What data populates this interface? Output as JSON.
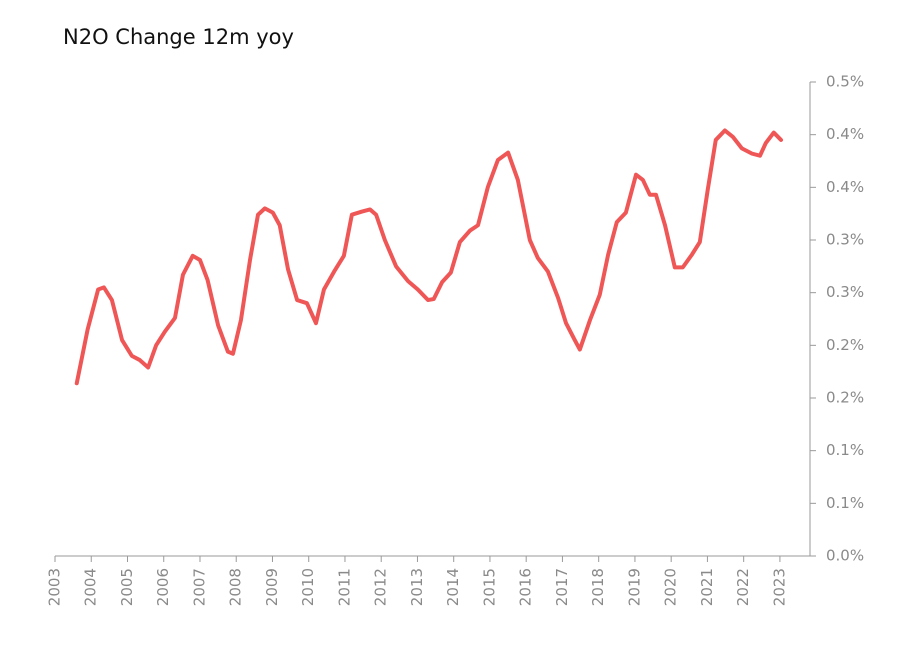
{
  "chart_data": {
    "type": "line",
    "title": "N2O Change 12m yoy",
    "xlim": [
      2003,
      2023.83
    ],
    "xticks": [
      2003,
      2004,
      2005,
      2006,
      2007,
      2008,
      2009,
      2010,
      2011,
      2012,
      2013,
      2014,
      2015,
      2016,
      2017,
      2018,
      2019,
      2020,
      2021,
      2022,
      2023
    ],
    "ylim": [
      0,
      0.45
    ],
    "yticks": [
      {
        "value": 0,
        "label": "0.0%"
      },
      {
        "value": 0.05,
        "label": "0.1%"
      },
      {
        "value": 0.1,
        "label": "0.1%"
      },
      {
        "value": 0.15,
        "label": "0.2%"
      },
      {
        "value": 0.2,
        "label": "0.2%"
      },
      {
        "value": 0.25,
        "label": "0.3%"
      },
      {
        "value": 0.3,
        "label": "0.3%"
      },
      {
        "value": 0.35,
        "label": "0.4%"
      },
      {
        "value": 0.4,
        "label": "0.4%"
      },
      {
        "value": 0.45,
        "label": "0.5%"
      }
    ],
    "grid": false,
    "series": [
      {
        "color": "#ef5757",
        "x": [
          2003.6,
          2003.9,
          2004.19,
          2004.35,
          2004.57,
          2004.85,
          2005.12,
          2005.34,
          2005.57,
          2005.79,
          2006.03,
          2006.31,
          2006.53,
          2006.8,
          2007.0,
          2007.21,
          2007.5,
          2007.77,
          2007.91,
          2008.13,
          2008.38,
          2008.6,
          2008.79,
          2009.01,
          2009.2,
          2009.43,
          2009.68,
          2009.95,
          2010.2,
          2010.42,
          2010.7,
          2010.97,
          2011.19,
          2011.47,
          2011.69,
          2011.86,
          2012.1,
          2012.41,
          2012.74,
          2013.01,
          2013.29,
          2013.45,
          2013.68,
          2013.92,
          2014.17,
          2014.45,
          2014.67,
          2014.94,
          2015.22,
          2015.5,
          2015.77,
          2016.1,
          2016.32,
          2016.6,
          2016.88,
          2017.1,
          2017.34,
          2017.48,
          2017.76,
          2018.03,
          2018.26,
          2018.5,
          2018.75,
          2019.03,
          2019.22,
          2019.41,
          2019.58,
          2019.83,
          2020.1,
          2020.32,
          2020.57,
          2020.79,
          2021.01,
          2021.23,
          2021.48,
          2021.7,
          2021.95,
          2022.23,
          2022.45,
          2022.61,
          2022.83,
          2023.03
        ],
        "values": [
          0.164,
          0.215,
          0.253,
          0.255,
          0.243,
          0.205,
          0.19,
          0.186,
          0.179,
          0.2,
          0.213,
          0.226,
          0.267,
          0.285,
          0.281,
          0.262,
          0.219,
          0.194,
          0.192,
          0.224,
          0.281,
          0.324,
          0.33,
          0.326,
          0.314,
          0.272,
          0.243,
          0.24,
          0.221,
          0.253,
          0.27,
          0.285,
          0.324,
          0.327,
          0.329,
          0.324,
          0.3,
          0.275,
          0.261,
          0.253,
          0.243,
          0.244,
          0.26,
          0.269,
          0.298,
          0.309,
          0.314,
          0.35,
          0.376,
          0.383,
          0.357,
          0.3,
          0.283,
          0.27,
          0.245,
          0.221,
          0.205,
          0.196,
          0.224,
          0.248,
          0.286,
          0.317,
          0.326,
          0.362,
          0.357,
          0.343,
          0.343,
          0.314,
          0.274,
          0.274,
          0.286,
          0.298,
          0.348,
          0.395,
          0.404,
          0.398,
          0.387,
          0.382,
          0.38,
          0.392,
          0.402,
          0.395
        ]
      }
    ]
  }
}
